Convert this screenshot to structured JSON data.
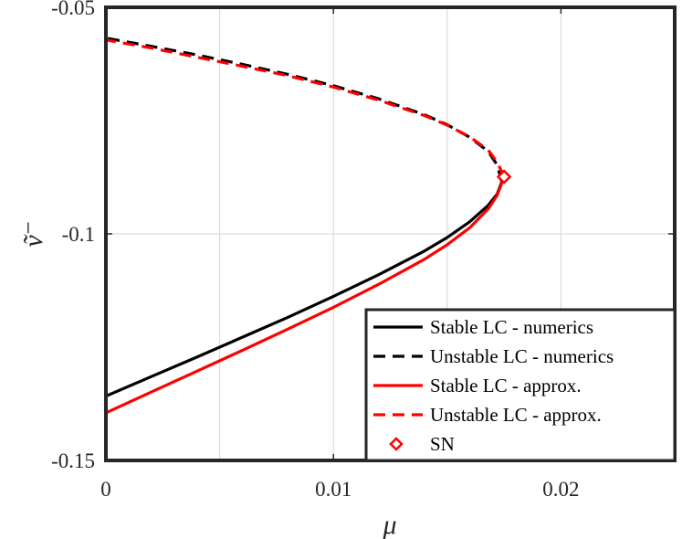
{
  "chart_data": {
    "type": "line",
    "xlabel": "μ",
    "ylabel": "ṽ⁻",
    "xlim": [
      0,
      0.025
    ],
    "ylim": [
      -0.15,
      -0.05
    ],
    "xticks": [
      0,
      0.01,
      0.02
    ],
    "xtick_labels": [
      "0",
      "0.01",
      "0.02"
    ],
    "yticks": [
      -0.15,
      -0.1,
      -0.05
    ],
    "ytick_labels": [
      "-0.15",
      "-0.1",
      "-0.05"
    ],
    "grid": true,
    "legend_position": "bottom-right",
    "series": [
      {
        "name": "Stable LC - numerics",
        "color": "#000000",
        "style": "solid",
        "points": [
          [
            0,
            -0.1358
          ],
          [
            0.002,
            -0.1315
          ],
          [
            0.004,
            -0.1272
          ],
          [
            0.006,
            -0.1228
          ],
          [
            0.008,
            -0.1184
          ],
          [
            0.01,
            -0.1138
          ],
          [
            0.012,
            -0.109
          ],
          [
            0.014,
            -0.1038
          ],
          [
            0.015,
            -0.1008
          ],
          [
            0.016,
            -0.0973
          ],
          [
            0.0168,
            -0.0937
          ],
          [
            0.0172,
            -0.0912
          ],
          [
            0.0174,
            -0.0885
          ]
        ]
      },
      {
        "name": "Unstable LC - numerics",
        "color": "#000000",
        "style": "dashed",
        "points": [
          [
            0.0174,
            -0.0885
          ],
          [
            0.0172,
            -0.0848
          ],
          [
            0.0168,
            -0.0818
          ],
          [
            0.016,
            -0.0787
          ],
          [
            0.015,
            -0.0759
          ],
          [
            0.014,
            -0.0737
          ],
          [
            0.012,
            -0.0702
          ],
          [
            0.01,
            -0.0673
          ],
          [
            0.008,
            -0.0648
          ],
          [
            0.006,
            -0.0626
          ],
          [
            0.004,
            -0.0605
          ],
          [
            0.002,
            -0.0586
          ],
          [
            0,
            -0.0568
          ]
        ]
      },
      {
        "name": "Stable LC - approx.",
        "color": "#ff0000",
        "style": "solid",
        "points": [
          [
            0,
            -0.1395
          ],
          [
            0.002,
            -0.1349
          ],
          [
            0.004,
            -0.1303
          ],
          [
            0.006,
            -0.1257
          ],
          [
            0.008,
            -0.121
          ],
          [
            0.01,
            -0.1162
          ],
          [
            0.012,
            -0.1111
          ],
          [
            0.014,
            -0.1056
          ],
          [
            0.015,
            -0.1024
          ],
          [
            0.016,
            -0.0986
          ],
          [
            0.0168,
            -0.0945
          ],
          [
            0.0172,
            -0.0915
          ],
          [
            0.0175,
            -0.0874
          ]
        ]
      },
      {
        "name": "Unstable LC - approx.",
        "color": "#ff0000",
        "style": "dashed",
        "points": [
          [
            0.0175,
            -0.0874
          ],
          [
            0.0172,
            -0.0842
          ],
          [
            0.0168,
            -0.0815
          ],
          [
            0.016,
            -0.0786
          ],
          [
            0.015,
            -0.076
          ],
          [
            0.014,
            -0.0739
          ],
          [
            0.012,
            -0.0705
          ],
          [
            0.01,
            -0.0676
          ],
          [
            0.008,
            -0.0651
          ],
          [
            0.006,
            -0.063
          ],
          [
            0.004,
            -0.061
          ],
          [
            0.002,
            -0.059
          ],
          [
            0,
            -0.0572
          ]
        ]
      }
    ],
    "markers": [
      {
        "name": "SN",
        "color": "#ff0000",
        "symbol": "diamond",
        "x": 0.0175,
        "y": -0.0874
      }
    ]
  }
}
